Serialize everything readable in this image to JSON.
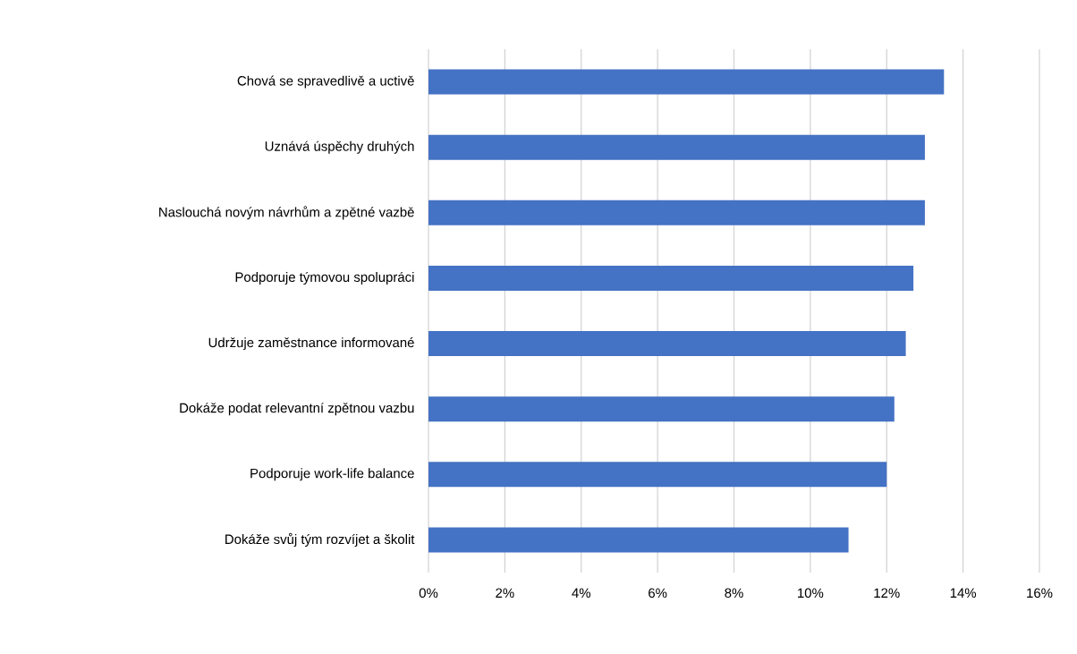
{
  "chart_data": {
    "type": "bar",
    "orientation": "horizontal",
    "categories": [
      "Chová se spravedlivě a uctivě",
      "Uznává úspěchy druhých",
      "Naslouchá novým návrhům a zpětné vazbě",
      "Podporuje týmovou spolupráci",
      "Udržuje zaměstnance informované",
      "Dokáže podat relevantní zpětnou vazbu",
      "Podporuje work-life balance",
      "Dokáže svůj tým rozvíjet a školit"
    ],
    "values": [
      13.5,
      13.0,
      13.0,
      12.7,
      12.5,
      12.2,
      12.0,
      11.0
    ],
    "color": "#4472c4",
    "xlim": [
      0,
      16
    ],
    "xticks": [
      {
        "value": 0,
        "label": "0%"
      },
      {
        "value": 2,
        "label": "2%"
      },
      {
        "value": 4,
        "label": "4%"
      },
      {
        "value": 6,
        "label": "6%"
      },
      {
        "value": 8,
        "label": "8%"
      },
      {
        "value": 10,
        "label": "10%"
      },
      {
        "value": 12,
        "label": "12%"
      },
      {
        "value": 14,
        "label": "14%"
      },
      {
        "value": 16,
        "label": "16%"
      }
    ],
    "grid": "x"
  }
}
